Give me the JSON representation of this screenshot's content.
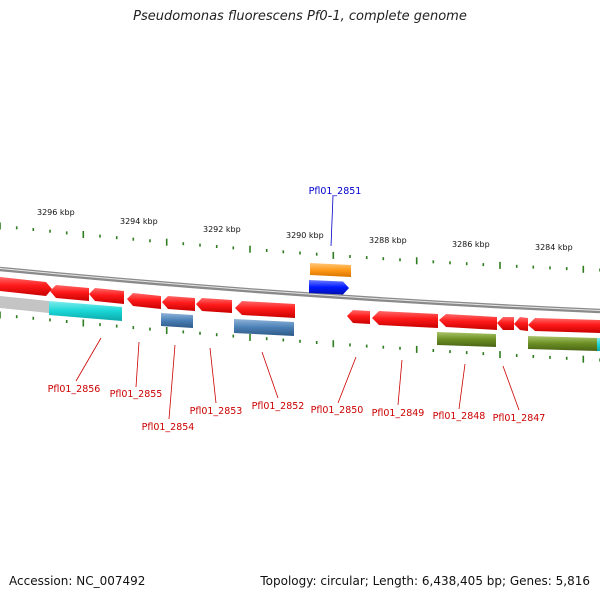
{
  "title": "Pseudomonas fluorescens Pf0-1, complete genome",
  "footer": {
    "accession": "Accession: NC_007492",
    "topology": "Topology: circular; Length: 6,438,405 bp; Genes: 5,816"
  },
  "colors": {
    "background": "#ffffff",
    "backbone": "#8a8a8a",
    "tick": "#2e7d1e",
    "cds_forward": "#ff1a1a",
    "label_red": "#cc0000",
    "label_blue": "#0000cc",
    "rrna_cyan": "#19d6d6",
    "steelblue": "#4a7fb5",
    "olive": "#6b8e23",
    "orange": "#ff9a1a",
    "blue": "#0019ff"
  },
  "ruler": {
    "unit": "kbp",
    "tick_labels": [
      "3296 kbp",
      "3294 kbp",
      "3292 kbp",
      "3290 kbp",
      "3288 kbp",
      "3286 kbp",
      "3284 kbp"
    ]
  },
  "genes": [
    {
      "name": "Pfl01_2851",
      "color": "blue"
    },
    {
      "name": "Pfl01_2856",
      "color": "red"
    },
    {
      "name": "Pfl01_2855",
      "color": "red"
    },
    {
      "name": "Pfl01_2854",
      "color": "red"
    },
    {
      "name": "Pfl01_2853",
      "color": "red"
    },
    {
      "name": "Pfl01_2852",
      "color": "red"
    },
    {
      "name": "Pfl01_2850",
      "color": "red"
    },
    {
      "name": "Pfl01_2849",
      "color": "red"
    },
    {
      "name": "Pfl01_2848",
      "color": "red"
    },
    {
      "name": "Pfl01_2847",
      "color": "red"
    }
  ]
}
